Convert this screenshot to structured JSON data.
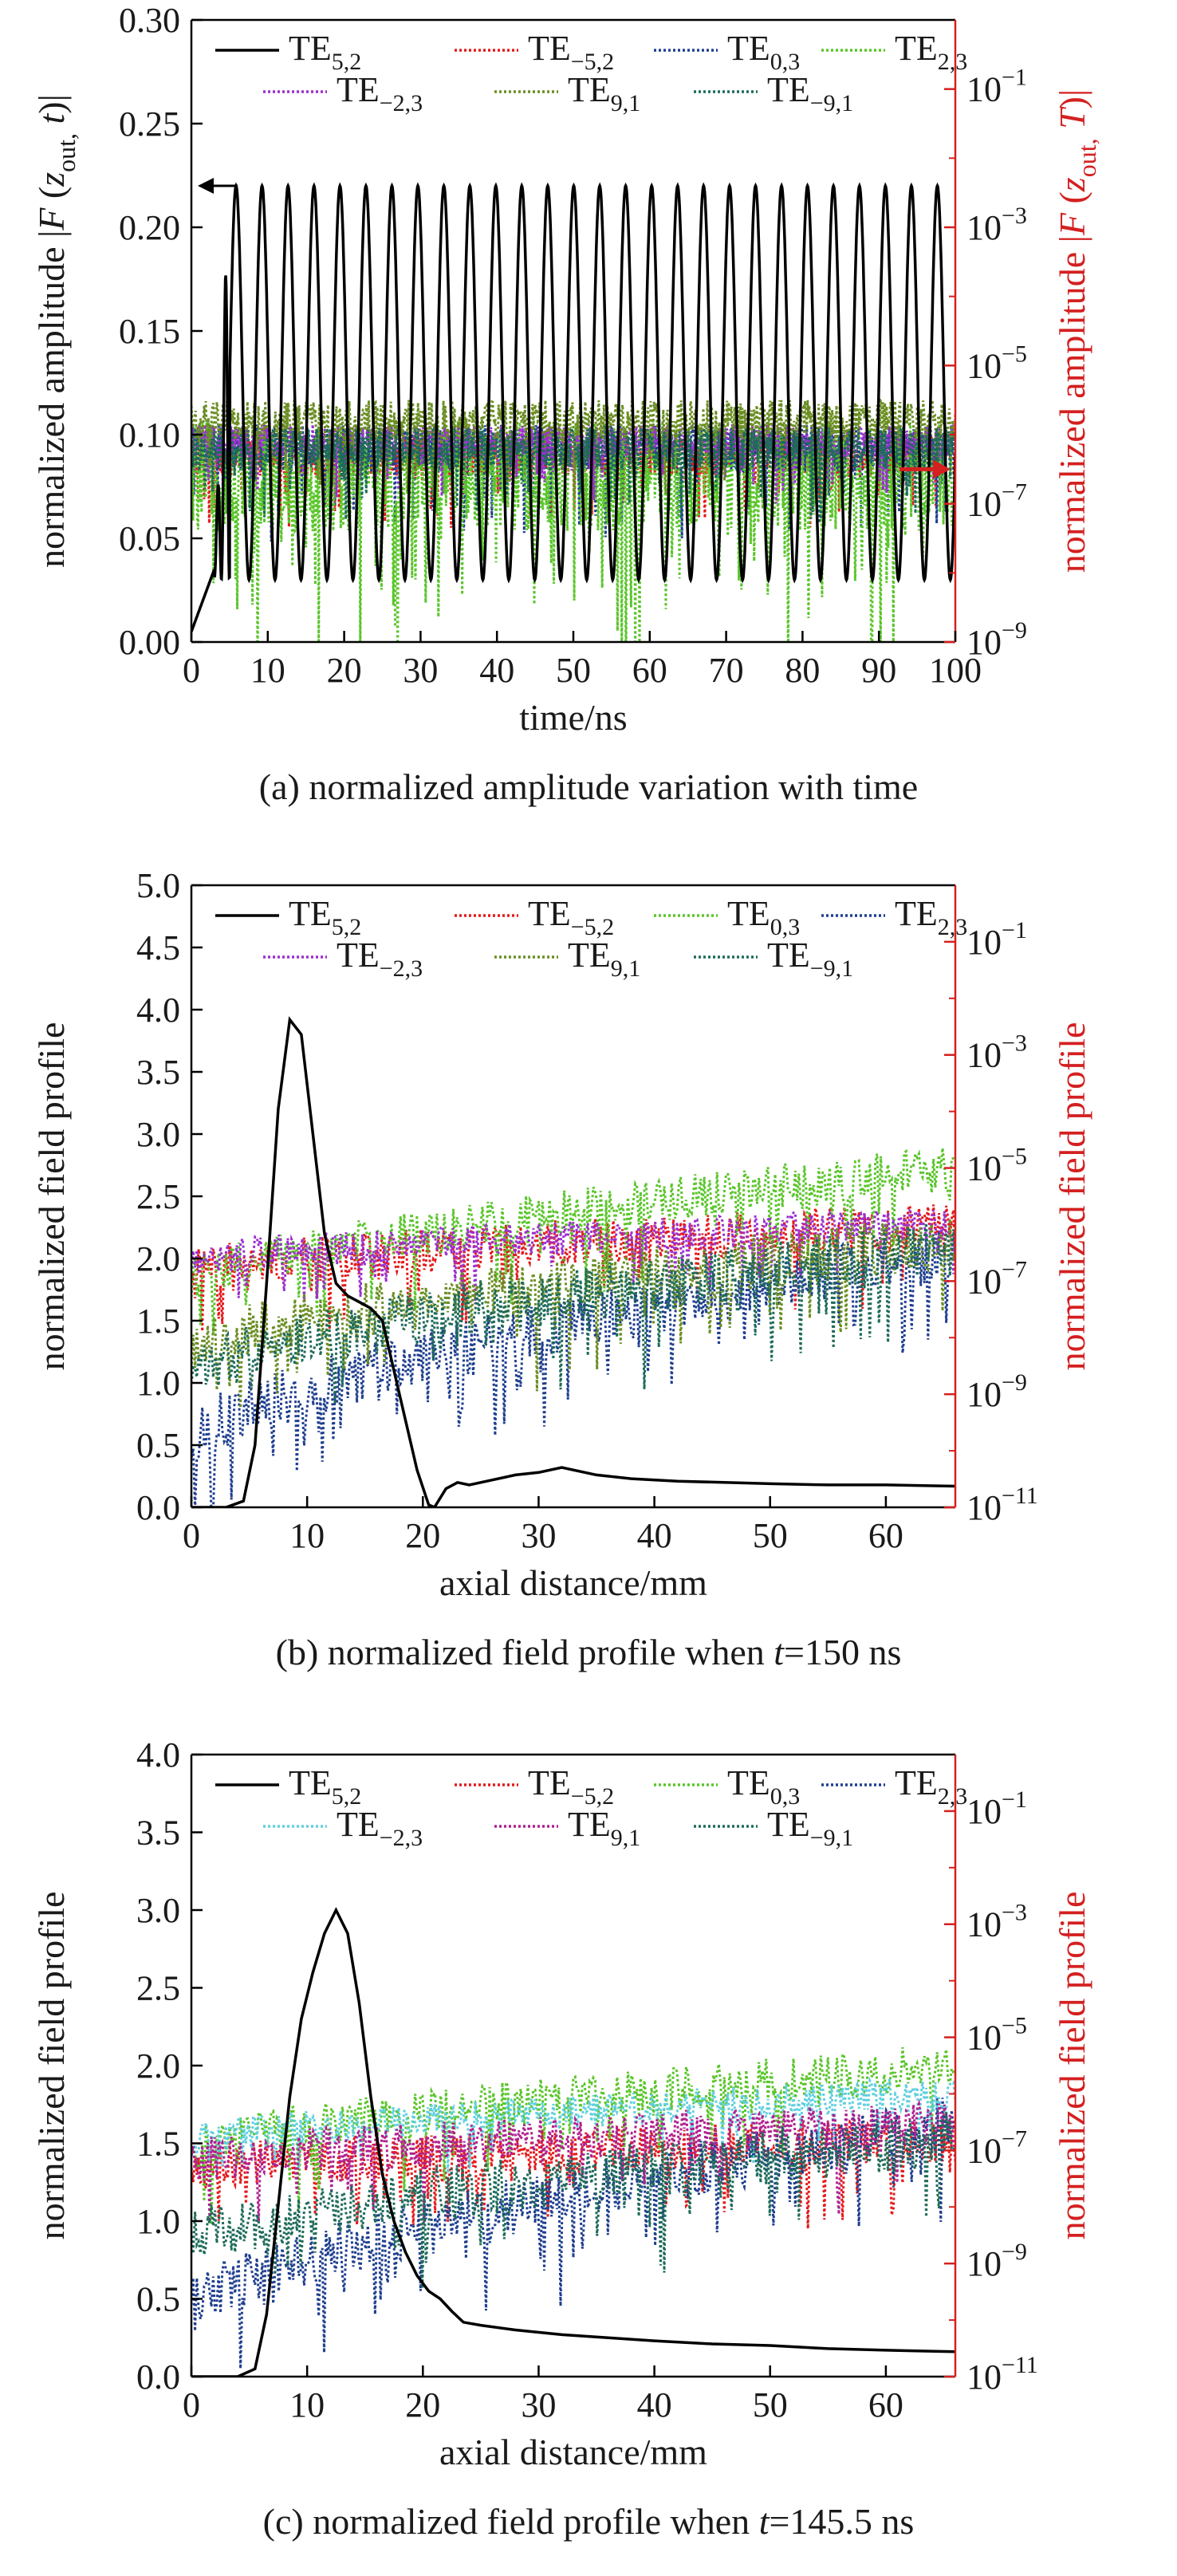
{
  "chart_data": [
    {
      "id": "a",
      "type": "line",
      "xlabel": "time/ns",
      "ylabel": "normalized amplitude |F (z_out, t)|",
      "ylabel_parts": {
        "pre": "normalized amplitude |",
        "F": "F",
        "open": " (",
        "z": "z",
        "sub": "out,",
        "t": " t",
        "close": ")|"
      },
      "y2label": "normalized amplitude |F (z_out, T)|",
      "y2label_parts": {
        "pre": "normalized amplitude |",
        "F": "F",
        "open": " (",
        "z": "z",
        "sub": "out,",
        "t": " T",
        "close": ")|"
      },
      "caption": "(a) normalized amplitude variation with time",
      "xlim": [
        0,
        100
      ],
      "ylim": [
        0,
        0.3
      ],
      "xticks": [
        0,
        10,
        20,
        30,
        40,
        50,
        60,
        70,
        80,
        90,
        100
      ],
      "yticks": [
        0.0,
        0.05,
        0.1,
        0.15,
        0.2,
        0.25,
        0.3
      ],
      "ytick_labels": [
        "0.00",
        "0.05",
        "0.10",
        "0.15",
        "0.20",
        "0.25",
        "0.30"
      ],
      "y2_exponents": [
        "−9",
        "−7",
        "−5",
        "−3",
        "−1"
      ],
      "legend": [
        {
          "base": "TE",
          "sub": "5,2",
          "color": "#000000",
          "style": "solid"
        },
        {
          "base": "TE",
          "sub": "−5,2",
          "color": "#e41a1c",
          "style": "dotted"
        },
        {
          "base": "TE",
          "sub": "0,3",
          "color": "#1f3f8f",
          "style": "dotted"
        },
        {
          "base": "TE",
          "sub": "2,3",
          "color": "#5ac52a",
          "style": "dotted"
        },
        {
          "base": "TE",
          "sub": "−2,3",
          "color": "#9b30d0",
          "style": "dotted"
        },
        {
          "base": "TE",
          "sub": "9,1",
          "color": "#6b8e23",
          "style": "dotted"
        },
        {
          "base": "TE",
          "sub": "−9,1",
          "color": "#1e6b5a",
          "style": "dotted"
        }
      ],
      "series": [
        {
          "name": "TE5,2",
          "desc": "rises to ~0.23 peaks near 4-12 ns, then oscillates between ~0.03 and ~0.22 with period ~3.4 ns",
          "peak": 0.22,
          "trough": 0.03
        },
        {
          "name": "TE−5,2",
          "mean_log10": -6.3,
          "spread": 0.6
        },
        {
          "name": "TE0,3",
          "mean_log10": -6.2,
          "spread": 0.7
        },
        {
          "name": "TE2,3",
          "mean_log10": -6.6,
          "spread": 1.6
        },
        {
          "name": "TE−2,3",
          "mean_log10": -6.1,
          "spread": 0.5
        },
        {
          "name": "TE9,1",
          "mean_log10": -5.8,
          "spread": 0.6
        },
        {
          "name": "TE−9,1",
          "mean_log10": -6.2,
          "spread": 0.6
        }
      ],
      "arrow_left_y": 0.22,
      "arrow_right_log10": -6.5
    },
    {
      "id": "b",
      "type": "line",
      "xlabel": "axial distance/mm",
      "ylabel": "normalized field profile",
      "y2label": "normalized field profile",
      "caption_pre": "(b) normalized field profile when ",
      "caption_t": "t",
      "caption_post": "=150 ns",
      "xlim": [
        0,
        66
      ],
      "ylim": [
        0,
        5.0
      ],
      "xticks": [
        0,
        10,
        20,
        30,
        40,
        50,
        60
      ],
      "yticks": [
        0,
        0.5,
        1.0,
        1.5,
        2.0,
        2.5,
        3.0,
        3.5,
        4.0,
        4.5,
        5.0
      ],
      "ytick_labels": [
        "0.0",
        "0.5",
        "1.0",
        "1.5",
        "2.0",
        "2.5",
        "3.0",
        "3.5",
        "4.0",
        "4.5",
        "5.0"
      ],
      "y2_exponents": [
        "−11",
        "−9",
        "−7",
        "−5",
        "−3",
        "−1"
      ],
      "legend": [
        {
          "base": "TE",
          "sub": "5,2",
          "color": "#000000",
          "style": "solid"
        },
        {
          "base": "TE",
          "sub": "−5,2",
          "color": "#e41a1c",
          "style": "dotted"
        },
        {
          "base": "TE",
          "sub": "0,3",
          "color": "#5ac52a",
          "style": "dotted"
        },
        {
          "base": "TE",
          "sub": "2,3",
          "color": "#1f3f8f",
          "style": "dotted"
        },
        {
          "base": "TE",
          "sub": "−2,3",
          "color": "#9b30d0",
          "style": "dotted"
        },
        {
          "base": "TE",
          "sub": "9,1",
          "color": "#6b8e23",
          "style": "dotted"
        },
        {
          "base": "TE",
          "sub": "−9,1",
          "color": "#1e6b5a",
          "style": "dotted"
        }
      ],
      "series": [
        {
          "name": "TE5,2",
          "points": [
            [
              0,
              0
            ],
            [
              3,
              0
            ],
            [
              4.5,
              0.05
            ],
            [
              5.5,
              0.5
            ],
            [
              6.5,
              1.8
            ],
            [
              7.5,
              3.2
            ],
            [
              8.5,
              3.92
            ],
            [
              9.5,
              3.8
            ],
            [
              10.5,
              3.0
            ],
            [
              11.5,
              2.2
            ],
            [
              12.5,
              1.8
            ],
            [
              13.5,
              1.7
            ],
            [
              14.5,
              1.65
            ],
            [
              15.5,
              1.6
            ],
            [
              16.5,
              1.5
            ],
            [
              17.5,
              1.1
            ],
            [
              18.5,
              0.7
            ],
            [
              19.5,
              0.3
            ],
            [
              20.5,
              0.02
            ],
            [
              21,
              0
            ],
            [
              22,
              0.15
            ],
            [
              23,
              0.2
            ],
            [
              24,
              0.18
            ],
            [
              26,
              0.22
            ],
            [
              28,
              0.26
            ],
            [
              30,
              0.28
            ],
            [
              32,
              0.32
            ],
            [
              33,
              0.3
            ],
            [
              35,
              0.26
            ],
            [
              38,
              0.23
            ],
            [
              42,
              0.21
            ],
            [
              46,
              0.2
            ],
            [
              50,
              0.19
            ],
            [
              55,
              0.18
            ],
            [
              60,
              0.18
            ],
            [
              66,
              0.17
            ]
          ]
        },
        {
          "name": "TE−5,2",
          "start_log10": -6.8,
          "end_log10": -6.0,
          "spread": 0.8
        },
        {
          "name": "TE0,3",
          "start_log10": -7.0,
          "end_log10": -5.0,
          "spread": 0.8
        },
        {
          "name": "TE2,3",
          "start_log10": -9.8,
          "end_log10": -6.5,
          "spread": 1.0
        },
        {
          "name": "TE−2,3",
          "start_log10": -6.6,
          "end_log10": -6.0,
          "spread": 0.6
        },
        {
          "name": "TE9,1",
          "start_log10": -8.2,
          "end_log10": -6.3,
          "spread": 1.0
        },
        {
          "name": "TE−9,1",
          "start_log10": -8.6,
          "end_log10": -6.4,
          "spread": 1.0
        }
      ]
    },
    {
      "id": "c",
      "type": "line",
      "xlabel": "axial distance/mm",
      "ylabel": "normalized field profile",
      "y2label": "normalized field profile",
      "caption_pre": "(c) normalized field profile when ",
      "caption_t": "t",
      "caption_post": "=145.5 ns",
      "xlim": [
        0,
        66
      ],
      "ylim": [
        0,
        4.0
      ],
      "xticks": [
        0,
        10,
        20,
        30,
        40,
        50,
        60
      ],
      "yticks": [
        0,
        0.5,
        1.0,
        1.5,
        2.0,
        2.5,
        3.0,
        3.5,
        4.0
      ],
      "ytick_labels": [
        "0.0",
        "0.5",
        "1.0",
        "1.5",
        "2.0",
        "2.5",
        "3.0",
        "3.5",
        "4.0"
      ],
      "y2_exponents": [
        "−11",
        "−9",
        "−7",
        "−5",
        "−3",
        "−1"
      ],
      "legend": [
        {
          "base": "TE",
          "sub": "5,2",
          "color": "#000000",
          "style": "solid"
        },
        {
          "base": "TE",
          "sub": "−5,2",
          "color": "#e41a1c",
          "style": "dotted"
        },
        {
          "base": "TE",
          "sub": "0,3",
          "color": "#5ac52a",
          "style": "dotted"
        },
        {
          "base": "TE",
          "sub": "2,3",
          "color": "#1f3f8f",
          "style": "dotted"
        },
        {
          "base": "TE",
          "sub": "−2,3",
          "color": "#5fd0e0",
          "style": "dotted"
        },
        {
          "base": "TE",
          "sub": "9,1",
          "color": "#b0208f",
          "style": "dotted"
        },
        {
          "base": "TE",
          "sub": "−9,1",
          "color": "#1e6b5a",
          "style": "dotted"
        }
      ],
      "series": [
        {
          "name": "TE5,2",
          "points": [
            [
              0,
              0
            ],
            [
              4,
              0
            ],
            [
              5.5,
              0.05
            ],
            [
              6.5,
              0.4
            ],
            [
              7.5,
              1.1
            ],
            [
              8.5,
              1.8
            ],
            [
              9.5,
              2.3
            ],
            [
              10.5,
              2.6
            ],
            [
              11.5,
              2.85
            ],
            [
              12.5,
              3.0
            ],
            [
              13.5,
              2.85
            ],
            [
              14.5,
              2.4
            ],
            [
              15.5,
              1.8
            ],
            [
              16.5,
              1.3
            ],
            [
              17.5,
              1.0
            ],
            [
              18.5,
              0.8
            ],
            [
              19.5,
              0.65
            ],
            [
              20.5,
              0.55
            ],
            [
              21.5,
              0.5
            ],
            [
              22.5,
              0.42
            ],
            [
              23.5,
              0.35
            ],
            [
              25,
              0.33
            ],
            [
              28,
              0.3
            ],
            [
              32,
              0.27
            ],
            [
              36,
              0.25
            ],
            [
              40,
              0.23
            ],
            [
              45,
              0.21
            ],
            [
              50,
              0.2
            ],
            [
              55,
              0.18
            ],
            [
              60,
              0.17
            ],
            [
              66,
              0.16
            ]
          ]
        },
        {
          "name": "TE−5,2",
          "start_log10": -7.3,
          "end_log10": -6.8,
          "spread": 0.8
        },
        {
          "name": "TE0,3",
          "start_log10": -7.0,
          "end_log10": -5.5,
          "spread": 0.8
        },
        {
          "name": "TE2,3",
          "start_log10": -9.8,
          "end_log10": -6.5,
          "spread": 1.0
        },
        {
          "name": "TE−2,3",
          "start_log10": -6.8,
          "end_log10": -6.0,
          "spread": 0.6
        },
        {
          "name": "TE9,1",
          "start_log10": -7.2,
          "end_log10": -6.5,
          "spread": 0.8
        },
        {
          "name": "TE−9,1",
          "start_log10": -8.6,
          "end_log10": -6.8,
          "spread": 1.0
        }
      ]
    }
  ]
}
